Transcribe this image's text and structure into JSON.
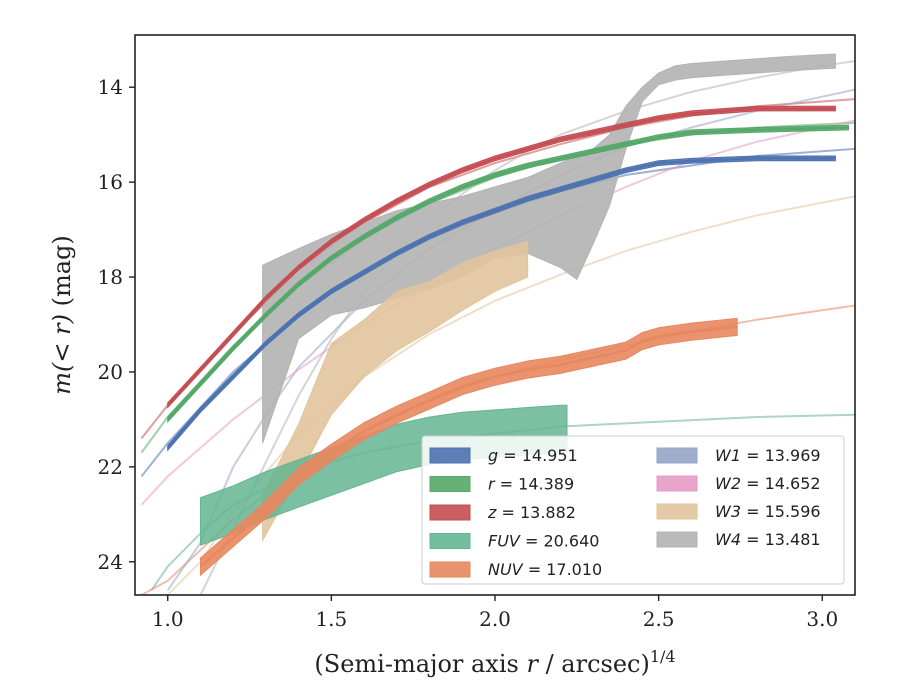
{
  "chart_data": {
    "type": "line",
    "xlabel": "(Semi-major axis r / arcsec)",
    "xlabel_parts": {
      "pre": "(Semi-major axis ",
      "var": "r",
      "post": " / arcsec)",
      "sup": "1/4"
    },
    "ylabel": "m(< r) (mag)",
    "ylabel_parts": {
      "pre": "m(< r)",
      "post": " (mag)"
    },
    "xlim": [
      0.9,
      3.1
    ],
    "ylim": [
      24.7,
      12.9
    ],
    "y_inverted": true,
    "xticks": [
      "1.0",
      "1.5",
      "2.0",
      "2.5",
      "3.0"
    ],
    "yticks": [
      "14",
      "16",
      "18",
      "20",
      "22",
      "24"
    ],
    "legend_position": "lower-right",
    "series": [
      {
        "name": "g",
        "label": "g = 14.951",
        "key": "g",
        "color": "#4c72b0",
        "data": [
          [
            1.0,
            21.6
          ],
          [
            1.1,
            20.8
          ],
          [
            1.2,
            20.1
          ],
          [
            1.3,
            19.4
          ],
          [
            1.4,
            18.8
          ],
          [
            1.5,
            18.3
          ],
          [
            1.6,
            17.9
          ],
          [
            1.7,
            17.5
          ],
          [
            1.8,
            17.15
          ],
          [
            1.9,
            16.85
          ],
          [
            2.0,
            16.6
          ],
          [
            2.1,
            16.35
          ],
          [
            2.2,
            16.15
          ],
          [
            2.3,
            15.95
          ],
          [
            2.4,
            15.75
          ],
          [
            2.5,
            15.6
          ],
          [
            2.6,
            15.55
          ],
          [
            2.8,
            15.5
          ],
          [
            3.04,
            15.5
          ]
        ],
        "band_half": 0.05,
        "model": [
          [
            0.92,
            22.2
          ],
          [
            1.0,
            21.5
          ],
          [
            1.2,
            20.0
          ],
          [
            1.4,
            18.8
          ],
          [
            1.6,
            17.9
          ],
          [
            1.8,
            17.2
          ],
          [
            2.0,
            16.65
          ],
          [
            2.2,
            16.2
          ],
          [
            2.4,
            15.85
          ],
          [
            2.6,
            15.65
          ],
          [
            2.8,
            15.45
          ],
          [
            3.1,
            15.3
          ]
        ]
      },
      {
        "name": "r",
        "label": "r = 14.389",
        "key": "r",
        "color": "#55a868",
        "data": [
          [
            1.0,
            21.0
          ],
          [
            1.1,
            20.25
          ],
          [
            1.2,
            19.5
          ],
          [
            1.3,
            18.8
          ],
          [
            1.4,
            18.15
          ],
          [
            1.5,
            17.6
          ],
          [
            1.6,
            17.15
          ],
          [
            1.7,
            16.75
          ],
          [
            1.8,
            16.4
          ],
          [
            1.9,
            16.1
          ],
          [
            2.0,
            15.85
          ],
          [
            2.1,
            15.65
          ],
          [
            2.2,
            15.5
          ],
          [
            2.3,
            15.35
          ],
          [
            2.4,
            15.2
          ],
          [
            2.5,
            15.05
          ],
          [
            2.6,
            14.95
          ],
          [
            2.8,
            14.9
          ],
          [
            3.08,
            14.85
          ]
        ],
        "band_half": 0.05,
        "model": [
          [
            0.92,
            21.7
          ],
          [
            1.0,
            20.95
          ],
          [
            1.2,
            19.45
          ],
          [
            1.4,
            18.2
          ],
          [
            1.6,
            17.2
          ],
          [
            1.8,
            16.45
          ],
          [
            2.0,
            15.9
          ],
          [
            2.2,
            15.5
          ],
          [
            2.4,
            15.2
          ],
          [
            2.6,
            15.0
          ],
          [
            2.8,
            14.85
          ],
          [
            3.1,
            14.75
          ]
        ]
      },
      {
        "name": "z",
        "label": "z = 13.882",
        "key": "z",
        "color": "#c44e52",
        "data": [
          [
            1.0,
            20.7
          ],
          [
            1.1,
            19.95
          ],
          [
            1.2,
            19.2
          ],
          [
            1.3,
            18.45
          ],
          [
            1.4,
            17.8
          ],
          [
            1.5,
            17.25
          ],
          [
            1.6,
            16.8
          ],
          [
            1.7,
            16.4
          ],
          [
            1.8,
            16.05
          ],
          [
            1.9,
            15.75
          ],
          [
            2.0,
            15.5
          ],
          [
            2.1,
            15.3
          ],
          [
            2.2,
            15.1
          ],
          [
            2.3,
            14.95
          ],
          [
            2.4,
            14.8
          ],
          [
            2.5,
            14.65
          ],
          [
            2.6,
            14.55
          ],
          [
            2.8,
            14.45
          ],
          [
            3.04,
            14.45
          ]
        ],
        "band_half": 0.05,
        "model": [
          [
            0.92,
            21.4
          ],
          [
            1.0,
            20.7
          ],
          [
            1.2,
            19.2
          ],
          [
            1.4,
            17.85
          ],
          [
            1.6,
            16.85
          ],
          [
            1.8,
            16.1
          ],
          [
            2.0,
            15.6
          ],
          [
            2.2,
            15.2
          ],
          [
            2.4,
            14.85
          ],
          [
            2.6,
            14.6
          ],
          [
            2.8,
            14.4
          ],
          [
            3.1,
            14.25
          ]
        ]
      },
      {
        "name": "FUV",
        "label": "FUV = 20.640",
        "key": "FUV",
        "color": "#64b592",
        "data": [
          [
            1.1,
            23.15
          ],
          [
            1.2,
            22.9
          ],
          [
            1.3,
            22.6
          ],
          [
            1.4,
            22.35
          ],
          [
            1.5,
            22.1
          ],
          [
            1.6,
            21.85
          ],
          [
            1.7,
            21.6
          ],
          [
            1.8,
            21.45
          ],
          [
            1.9,
            21.35
          ],
          [
            2.0,
            21.3
          ],
          [
            2.1,
            21.25
          ],
          [
            2.2,
            21.2
          ],
          [
            2.22,
            21.2
          ]
        ],
        "band_half": 0.5,
        "model": [
          [
            0.95,
            24.6
          ],
          [
            1.0,
            24.1
          ],
          [
            1.1,
            23.4
          ],
          [
            1.2,
            22.8
          ],
          [
            1.4,
            22.1
          ],
          [
            1.6,
            21.7
          ],
          [
            1.8,
            21.45
          ],
          [
            2.0,
            21.3
          ],
          [
            2.2,
            21.15
          ],
          [
            2.5,
            21.05
          ],
          [
            2.8,
            20.95
          ],
          [
            3.1,
            20.9
          ]
        ]
      },
      {
        "name": "NUV",
        "label": "NUV = 17.010",
        "key": "NUV",
        "color": "#e8875f",
        "data": [
          [
            1.1,
            24.1
          ],
          [
            1.2,
            23.5
          ],
          [
            1.3,
            22.9
          ],
          [
            1.4,
            22.2
          ],
          [
            1.5,
            21.7
          ],
          [
            1.6,
            21.25
          ],
          [
            1.7,
            20.9
          ],
          [
            1.8,
            20.6
          ],
          [
            1.9,
            20.3
          ],
          [
            2.0,
            20.1
          ],
          [
            2.1,
            19.95
          ],
          [
            2.2,
            19.85
          ],
          [
            2.3,
            19.7
          ],
          [
            2.4,
            19.55
          ],
          [
            2.45,
            19.35
          ],
          [
            2.5,
            19.25
          ],
          [
            2.6,
            19.15
          ],
          [
            2.74,
            19.05
          ]
        ],
        "band_half": 0.18,
        "model": [
          [
            0.92,
            24.7
          ],
          [
            1.0,
            24.4
          ],
          [
            1.2,
            23.1
          ],
          [
            1.4,
            22.05
          ],
          [
            1.6,
            21.25
          ],
          [
            1.8,
            20.6
          ],
          [
            2.0,
            20.1
          ],
          [
            2.2,
            19.75
          ],
          [
            2.4,
            19.45
          ],
          [
            2.6,
            19.15
          ],
          [
            2.8,
            18.9
          ],
          [
            3.1,
            18.6
          ]
        ]
      },
      {
        "name": "W1",
        "label": "W1 = 13.969",
        "key": "W1",
        "color": "#95a5c8",
        "model": [
          [
            1.0,
            24.6
          ],
          [
            1.1,
            23.6
          ],
          [
            1.2,
            22.0
          ],
          [
            1.3,
            20.9
          ],
          [
            1.4,
            19.9
          ],
          [
            1.6,
            18.5
          ],
          [
            1.8,
            17.4
          ],
          [
            2.0,
            16.6
          ],
          [
            2.2,
            15.85
          ],
          [
            2.4,
            15.25
          ],
          [
            2.6,
            14.85
          ],
          [
            2.8,
            14.5
          ],
          [
            3.1,
            14.05
          ]
        ]
      },
      {
        "name": "W2",
        "label": "W2 = 14.652",
        "key": "W2",
        "color": "#e69bc6",
        "model": [
          [
            0.92,
            22.8
          ],
          [
            1.0,
            22.2
          ],
          [
            1.2,
            21.0
          ],
          [
            1.4,
            19.95
          ],
          [
            1.6,
            19.0
          ],
          [
            1.8,
            18.15
          ],
          [
            2.0,
            17.4
          ],
          [
            2.2,
            16.7
          ],
          [
            2.4,
            16.1
          ],
          [
            2.6,
            15.55
          ],
          [
            2.8,
            15.15
          ],
          [
            3.1,
            14.7
          ]
        ]
      },
      {
        "name": "W3",
        "label": "W3 = 15.596",
        "key": "W3",
        "color": "#e1c49c",
        "upper": [
          [
            1.29,
            22.6
          ],
          [
            1.4,
            21.1
          ],
          [
            1.5,
            19.4
          ],
          [
            1.6,
            18.9
          ],
          [
            1.7,
            18.3
          ],
          [
            1.8,
            18.1
          ],
          [
            1.9,
            17.7
          ],
          [
            2.0,
            17.45
          ],
          [
            2.1,
            17.25
          ]
        ],
        "lower": [
          [
            1.29,
            23.55
          ],
          [
            1.4,
            22.2
          ],
          [
            1.5,
            20.9
          ],
          [
            1.6,
            20.1
          ],
          [
            1.7,
            19.55
          ],
          [
            1.8,
            19.15
          ],
          [
            1.9,
            18.7
          ],
          [
            2.0,
            18.3
          ],
          [
            2.1,
            18.0
          ]
        ],
        "model": [
          [
            1.0,
            24.7
          ],
          [
            1.1,
            24.0
          ],
          [
            1.2,
            22.95
          ],
          [
            1.4,
            21.3
          ],
          [
            1.6,
            20.1
          ],
          [
            1.8,
            19.2
          ],
          [
            2.0,
            18.5
          ],
          [
            2.2,
            17.95
          ],
          [
            2.4,
            17.45
          ],
          [
            2.6,
            17.05
          ],
          [
            2.8,
            16.7
          ],
          [
            3.1,
            16.3
          ]
        ]
      },
      {
        "name": "W4",
        "label": "W4 = 13.481",
        "key": "W4",
        "color": "#b3b3b3",
        "upper": [
          [
            1.29,
            17.75
          ],
          [
            1.4,
            17.4
          ],
          [
            1.5,
            17.1
          ],
          [
            1.6,
            16.85
          ],
          [
            1.7,
            16.6
          ],
          [
            1.8,
            16.45
          ],
          [
            1.9,
            16.3
          ],
          [
            2.0,
            16.1
          ],
          [
            2.1,
            15.9
          ],
          [
            2.2,
            15.6
          ],
          [
            2.3,
            15.3
          ],
          [
            2.35,
            15.0
          ],
          [
            2.4,
            14.4
          ],
          [
            2.45,
            14.0
          ],
          [
            2.5,
            13.7
          ],
          [
            2.55,
            13.55
          ],
          [
            2.6,
            13.5
          ],
          [
            2.7,
            13.45
          ],
          [
            2.8,
            13.4
          ],
          [
            2.9,
            13.35
          ],
          [
            3.04,
            13.3
          ]
        ],
        "lower": [
          [
            1.29,
            21.5
          ],
          [
            1.4,
            19.3
          ],
          [
            1.5,
            18.8
          ],
          [
            1.6,
            18.65
          ],
          [
            1.7,
            18.45
          ],
          [
            1.8,
            18.25
          ],
          [
            1.9,
            18.0
          ],
          [
            2.0,
            17.6
          ],
          [
            2.1,
            17.5
          ],
          [
            2.2,
            17.8
          ],
          [
            2.25,
            18.05
          ],
          [
            2.3,
            17.3
          ],
          [
            2.35,
            16.5
          ],
          [
            2.4,
            15.3
          ],
          [
            2.45,
            14.3
          ],
          [
            2.5,
            13.95
          ],
          [
            2.55,
            13.85
          ],
          [
            2.6,
            13.8
          ],
          [
            2.7,
            13.75
          ],
          [
            2.8,
            13.7
          ],
          [
            2.9,
            13.65
          ],
          [
            3.04,
            13.6
          ]
        ],
        "model": [
          [
            1.1,
            24.7
          ],
          [
            1.2,
            23.3
          ],
          [
            1.3,
            21.9
          ],
          [
            1.4,
            20.5
          ],
          [
            1.5,
            19.3
          ],
          [
            1.6,
            18.3
          ],
          [
            1.7,
            17.5
          ],
          [
            1.8,
            16.8
          ],
          [
            1.9,
            16.25
          ],
          [
            2.0,
            15.75
          ],
          [
            2.1,
            15.35
          ],
          [
            2.2,
            15.0
          ],
          [
            2.4,
            14.5
          ],
          [
            2.6,
            14.1
          ],
          [
            2.8,
            13.8
          ],
          [
            3.0,
            13.55
          ],
          [
            3.1,
            13.45
          ]
        ]
      }
    ],
    "legend": {
      "left": [
        {
          "key": "g",
          "value": "14.951"
        },
        {
          "key": "r",
          "value": "14.389"
        },
        {
          "key": "z",
          "value": "13.882"
        },
        {
          "key": "FUV",
          "value": "20.640"
        },
        {
          "key": "NUV",
          "value": "17.010"
        }
      ],
      "right": [
        {
          "key": "W1",
          "value": "13.969"
        },
        {
          "key": "W2",
          "value": "14.652"
        },
        {
          "key": "W3",
          "value": "15.596"
        },
        {
          "key": "W4",
          "value": "13.481"
        }
      ]
    }
  }
}
